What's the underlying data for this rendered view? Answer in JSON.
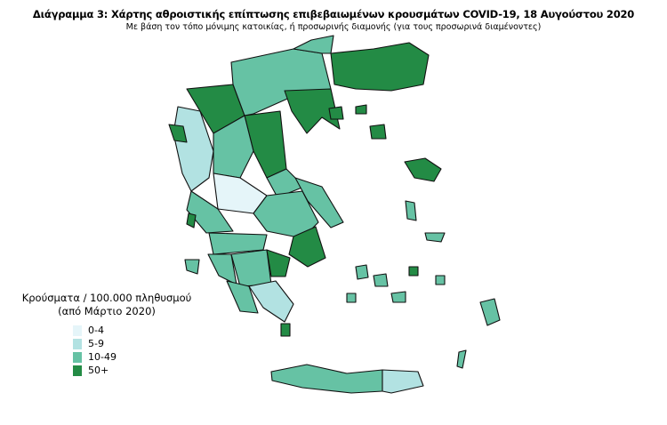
{
  "title": "Διάγραμμα 3: Χάρτης αθροιστικής επίπτωσης επιβεβαιωμένων κρουσμάτων COVID-19, 18 Αυγούστου 2020",
  "subtitle": "Με βάση τον τόπο μόνιμης κατοικίας, ή προσωρινής διαμονής (για τους προσωρινά διαμένοντες)",
  "legend": {
    "title_line1": "Κρούσματα / 100.000 πληθυσμού",
    "title_line2": "(από Μάρτιο 2020)",
    "items": [
      {
        "label": "0-4",
        "color": "#e5f5f9"
      },
      {
        "label": "5-9",
        "color": "#b2e2e2"
      },
      {
        "label": "10-49",
        "color": "#66c2a4"
      },
      {
        "label": "50+",
        "color": "#238b45"
      }
    ]
  }
}
